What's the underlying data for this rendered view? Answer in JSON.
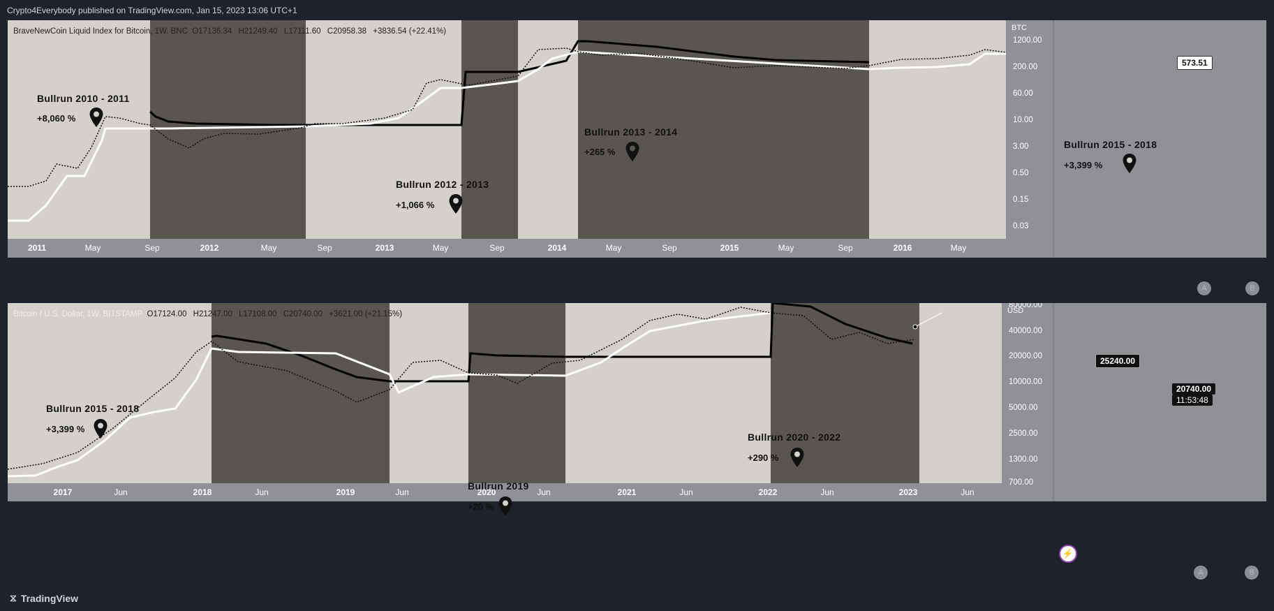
{
  "header": {
    "published": "Crypto4Everybody published on TradingView.com, Jan 15, 2023 13:06 UTC+1"
  },
  "footer": {
    "brand": "TradingView"
  },
  "colors": {
    "dark_band": "#595550",
    "light_band": "#d4d0cb",
    "axis_bg": "#8f9196",
    "upper_line": "#000000",
    "lower_line": "#ffffff"
  },
  "chart_data": [
    {
      "type": "line",
      "symbol": "BraveNewCoin Liquid Index for Bitcoin, 1W, BNC",
      "ohlc": {
        "o": "O17136.34",
        "h": "H21249.40",
        "l": "L17111.60",
        "c": "C20958.38",
        "chg": "+3836.54 (+22.41%)"
      },
      "scale": "log",
      "currency": "BTC",
      "y_ticks": [
        "1200.00",
        "200.00",
        "60.00",
        "10.00",
        "3.00",
        "0.50",
        "0.15",
        "0.03"
      ],
      "last_price_label": "573.51",
      "x_ticks": [
        "2011",
        "May",
        "Sep",
        "2012",
        "May",
        "Sep",
        "2013",
        "May",
        "Sep",
        "2014",
        "May",
        "Sep",
        "2015",
        "May",
        "Sep",
        "2016",
        "May"
      ],
      "bands": [
        "light",
        "dark",
        "light",
        "dark",
        "light",
        "dark",
        "light"
      ],
      "annotations": [
        {
          "title": "Bullrun 2010 - 2011",
          "pct": "+8,060 %"
        },
        {
          "title": "Bullrun 2012 - 2013",
          "pct": "+1,066 %"
        },
        {
          "title": "Bullrun 2013 - 2014",
          "pct": "+265 %"
        },
        {
          "title": "Bullrun 2015 - 2018",
          "pct": "+3,399 %"
        }
      ],
      "axis_buttons": [
        "A",
        "B"
      ]
    },
    {
      "type": "line",
      "symbol": "Bitcoin / U.S. Dollar, 1W, BITSTAMP",
      "ohlc": {
        "o": "O17124.00",
        "h": "H21247.00",
        "l": "L17108.00",
        "c": "C20740.00",
        "chg": "+3621.00 (+21.15%)"
      },
      "scale": "log",
      "currency": "USD",
      "y_ticks": [
        "80000.00",
        "40000.00",
        "20000.00",
        "10000.00",
        "5000.00",
        "2500.00",
        "1300.00",
        "700.00"
      ],
      "last_price_label": "20740.00",
      "countdown": "11:53:48",
      "marker_label": "25240.00",
      "x_ticks": [
        "2017",
        "Jun",
        "2018",
        "Jun",
        "2019",
        "Jun",
        "2020",
        "Jun",
        "2021",
        "Jun",
        "2022",
        "Jun",
        "2023",
        "Jun"
      ],
      "bands": [
        "light",
        "dark",
        "light",
        "dark",
        "light",
        "dark",
        "light"
      ],
      "annotations": [
        {
          "title": "Bullrun 2015 - 2018",
          "pct": "+3,399 %"
        },
        {
          "title": "Bullrun 2019",
          "pct": "+20 %"
        },
        {
          "title": "Bullrun 2020 - 2022",
          "pct": "+290 %"
        }
      ],
      "axis_buttons": [
        "A",
        "B"
      ]
    }
  ]
}
